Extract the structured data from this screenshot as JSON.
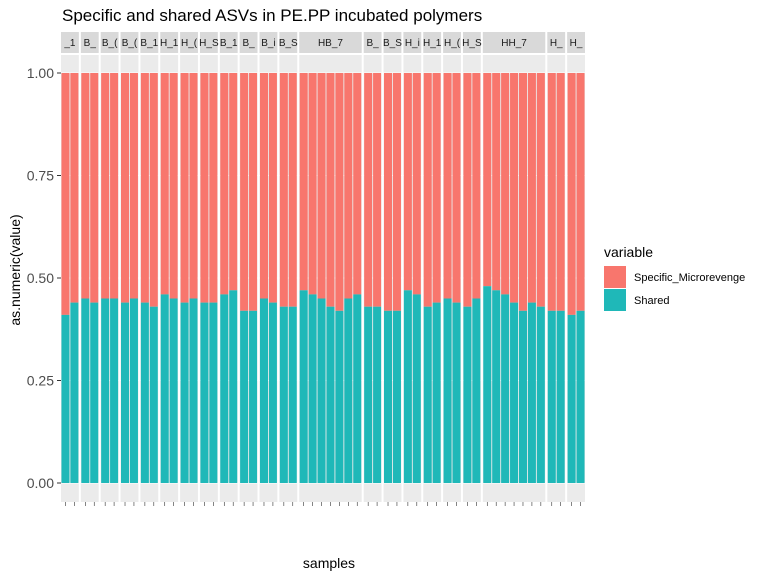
{
  "colors": {
    "specific": "#F8766D",
    "shared": "#1FB8B8",
    "panel_bg": "#EBEBEB",
    "strip_bg": "#D9D9D9",
    "grid": "#FFFFFF"
  },
  "chart_data": {
    "type": "bar",
    "stacked": true,
    "title": "Specific and shared ASVs in PE.PP incubated polymers",
    "xlabel": "samples",
    "ylabel": "as.numeric(value)",
    "ylim": [
      0,
      1
    ],
    "yticks": [
      "0.00",
      "0.25",
      "0.50",
      "0.75",
      "1.00"
    ],
    "legend": {
      "title": "variable",
      "position": "right",
      "entries": [
        "Specific_Microrevenge",
        "Shared"
      ]
    },
    "facets": [
      {
        "label": "_1",
        "shared": [
          0.41,
          0.44
        ]
      },
      {
        "label": "B_",
        "shared": [
          0.45,
          0.44
        ]
      },
      {
        "label": "B_(",
        "shared": [
          0.45,
          0.45
        ]
      },
      {
        "label": "B_(",
        "shared": [
          0.44,
          0.45
        ]
      },
      {
        "label": "B_1",
        "shared": [
          0.44,
          0.43
        ]
      },
      {
        "label": "H_1",
        "shared": [
          0.46,
          0.45
        ]
      },
      {
        "label": "H_(",
        "shared": [
          0.44,
          0.45
        ]
      },
      {
        "label": "H_S",
        "shared": [
          0.44,
          0.44
        ]
      },
      {
        "label": "B_1",
        "shared": [
          0.46,
          0.47
        ]
      },
      {
        "label": "B_",
        "shared": [
          0.42,
          0.42
        ]
      },
      {
        "label": "B_i",
        "shared": [
          0.45,
          0.44
        ]
      },
      {
        "label": "B_S",
        "shared": [
          0.43,
          0.43
        ]
      },
      {
        "label": "HB_7",
        "shared": [
          0.47,
          0.46,
          0.45,
          0.43,
          0.42,
          0.45,
          0.46
        ]
      },
      {
        "label": "B_",
        "shared": [
          0.43,
          0.43
        ]
      },
      {
        "label": "B_S",
        "shared": [
          0.42,
          0.42
        ]
      },
      {
        "label": "H_i",
        "shared": [
          0.47,
          0.46
        ]
      },
      {
        "label": "H_1",
        "shared": [
          0.43,
          0.44
        ]
      },
      {
        "label": "H_(",
        "shared": [
          0.45,
          0.44
        ]
      },
      {
        "label": "H_S",
        "shared": [
          0.43,
          0.45
        ]
      },
      {
        "label": "HH_7",
        "shared": [
          0.48,
          0.47,
          0.46,
          0.44,
          0.42,
          0.44,
          0.43
        ]
      },
      {
        "label": "H_",
        "shared": [
          0.42,
          0.42
        ]
      },
      {
        "label": "H_",
        "shared": [
          0.41,
          0.42
        ]
      }
    ]
  }
}
